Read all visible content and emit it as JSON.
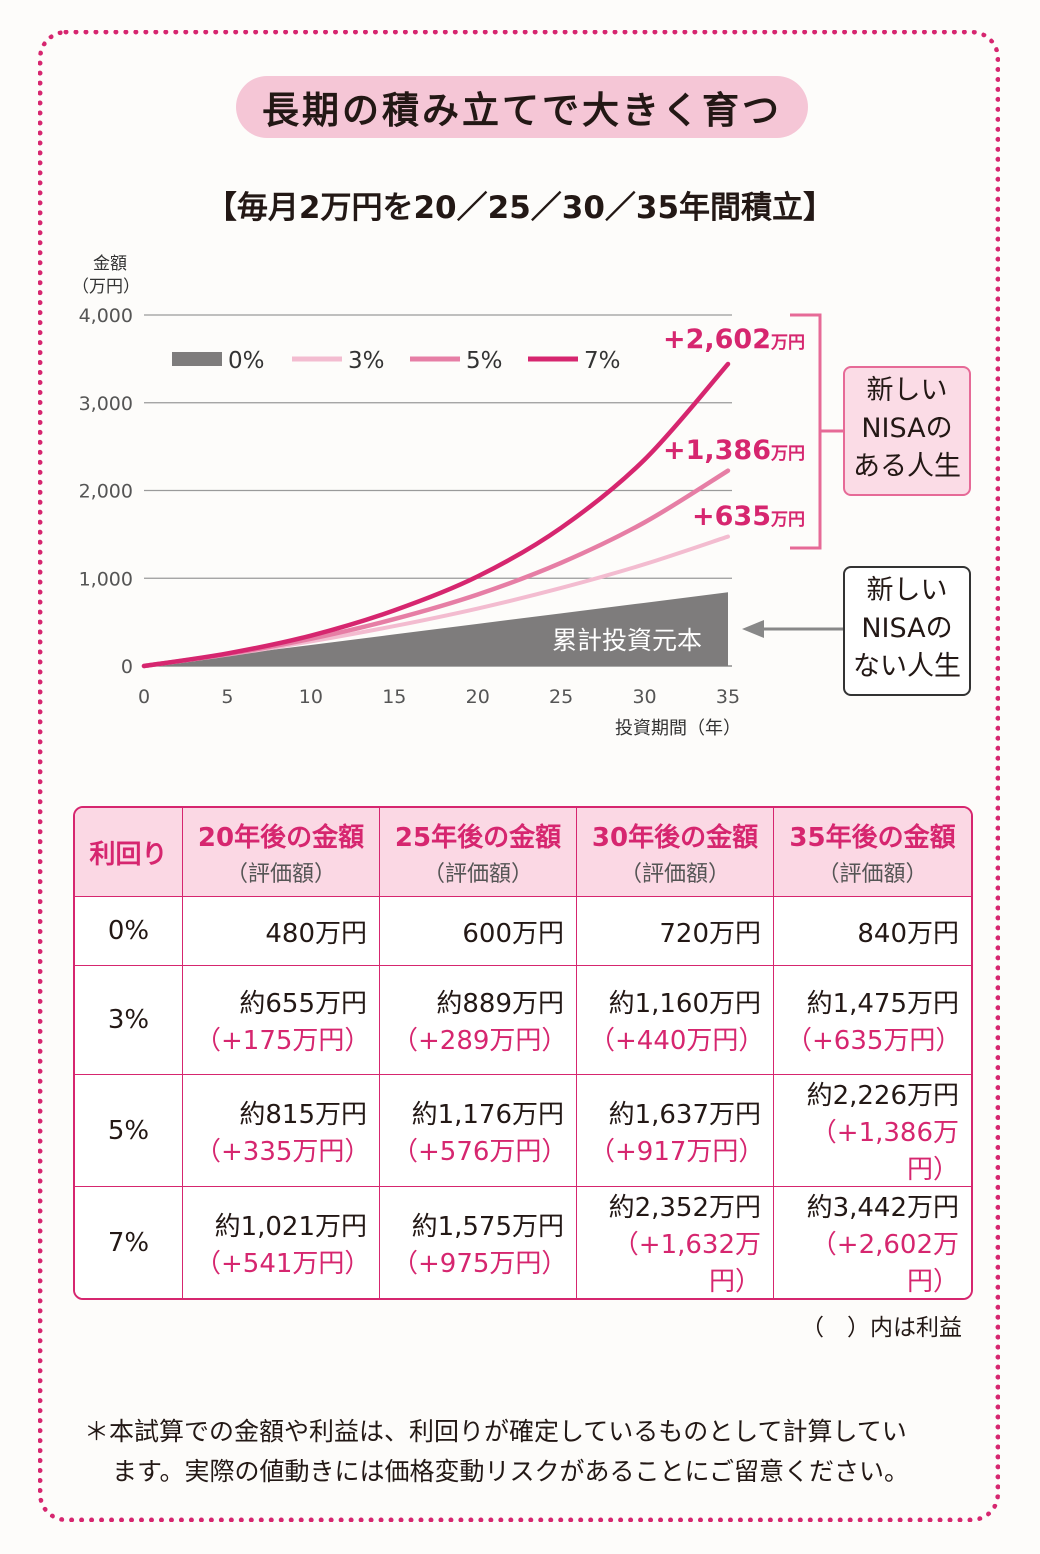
{
  "title": "長期の積み立てで大きく育つ",
  "subtitle": "【毎月2万円を20／25／30／35年間積立】",
  "colors": {
    "accent": "#d6266f",
    "principal": "#7e7c7c",
    "rate3": "#f3bcd0",
    "rate5": "#e67ea5",
    "rate7": "#d6266f"
  },
  "chart_data": {
    "type": "area",
    "ylabel": [
      "金額",
      "（万円）"
    ],
    "xlabel": "投資期間（年）",
    "xlim": [
      0,
      35
    ],
    "ylim": [
      0,
      4000
    ],
    "x_ticks": [
      "0",
      "5",
      "10",
      "15",
      "20",
      "25",
      "30",
      "35"
    ],
    "y_ticks": [
      "0",
      "1,000",
      "2,000",
      "3,000",
      "4,000"
    ],
    "grid": true,
    "legend_position": "top-left",
    "x": [
      0,
      5,
      10,
      15,
      20,
      25,
      30,
      35
    ],
    "series": [
      {
        "name": "0%",
        "kind": "area",
        "values": [
          0,
          120,
          240,
          360,
          480,
          600,
          720,
          840
        ]
      },
      {
        "name": "3%",
        "kind": "line",
        "values": [
          0,
          129,
          280,
          455,
          655,
          889,
          1160,
          1475
        ]
      },
      {
        "name": "5%",
        "kind": "line",
        "values": [
          0,
          136,
          310,
          535,
          815,
          1176,
          1637,
          2226
        ]
      },
      {
        "name": "7%",
        "kind": "line",
        "values": [
          0,
          143,
          346,
          634,
          1021,
          1575,
          2352,
          3442
        ]
      }
    ],
    "area_label": "累計投資元本",
    "end_labels": [
      {
        "series": "7%",
        "text": "+2,602",
        "unit": "万円"
      },
      {
        "series": "5%",
        "text": "+1,386",
        "unit": "万円"
      },
      {
        "series": "3%",
        "text": "+635",
        "unit": "万円"
      }
    ]
  },
  "callouts": {
    "with_nisa": [
      "新しい",
      "NISAの",
      "ある人生"
    ],
    "without_nisa": [
      "新しい",
      "NISAの",
      "ない人生"
    ]
  },
  "table": {
    "header_rate": "利回り",
    "columns": [
      {
        "title": "20年後の金額",
        "sub": "（評価額）"
      },
      {
        "title": "25年後の金額",
        "sub": "（評価額）"
      },
      {
        "title": "30年後の金額",
        "sub": "（評価額）"
      },
      {
        "title": "35年後の金額",
        "sub": "（評価額）"
      }
    ],
    "rows": [
      {
        "rate": "0%",
        "cells": [
          {
            "amount": "480万円",
            "profit": ""
          },
          {
            "amount": "600万円",
            "profit": ""
          },
          {
            "amount": "720万円",
            "profit": ""
          },
          {
            "amount": "840万円",
            "profit": ""
          }
        ]
      },
      {
        "rate": "3%",
        "cells": [
          {
            "amount": "約655万円",
            "profit": "（+175万円）"
          },
          {
            "amount": "約889万円",
            "profit": "（+289万円）"
          },
          {
            "amount": "約1,160万円",
            "profit": "（+440万円）"
          },
          {
            "amount": "約1,475万円",
            "profit": "（+635万円）"
          }
        ]
      },
      {
        "rate": "5%",
        "cells": [
          {
            "amount": "約815万円",
            "profit": "（+335万円）"
          },
          {
            "amount": "約1,176万円",
            "profit": "（+576万円）"
          },
          {
            "amount": "約1,637万円",
            "profit": "（+917万円）"
          },
          {
            "amount": "約2,226万円",
            "profit": "（+1,386万円）"
          }
        ]
      },
      {
        "rate": "7%",
        "cells": [
          {
            "amount": "約1,021万円",
            "profit": "（+541万円）"
          },
          {
            "amount": "約1,575万円",
            "profit": "（+975万円）"
          },
          {
            "amount": "約2,352万円",
            "profit": "（+1,632万円）"
          },
          {
            "amount": "約3,442万円",
            "profit": "（+2,602万円）"
          }
        ]
      }
    ],
    "note": "（　）内は利益"
  },
  "footnote": [
    "＊本試算での金額や利益は、利回りが確定しているものとして計算してい",
    "ます。実際の値動きには価格変動リスクがあることにご留意ください。"
  ]
}
